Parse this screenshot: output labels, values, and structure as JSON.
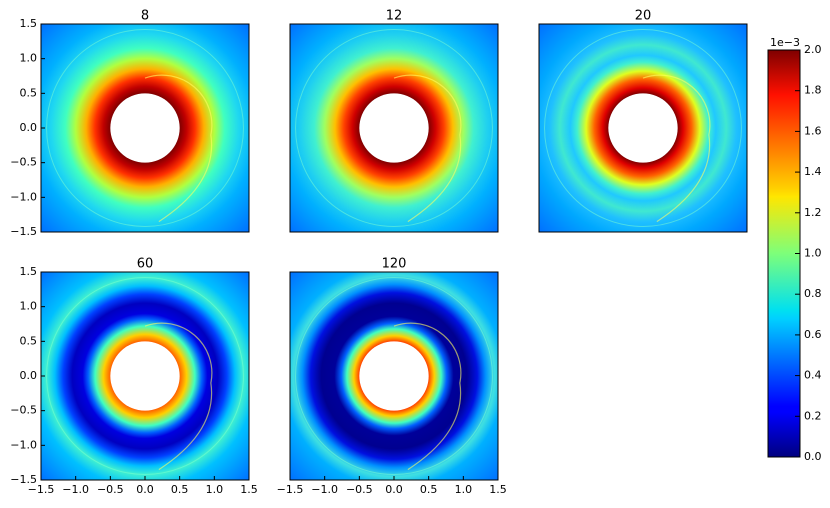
{
  "chart_data": [
    {
      "type": "heatmap",
      "title": "8",
      "xlim": [
        -1.5,
        1.5
      ],
      "ylim": [
        -1.5,
        1.5
      ],
      "yticks": [
        {
          "value": -1.5,
          "label": "−1.5"
        },
        {
          "value": -1.0,
          "label": "−1.0"
        },
        {
          "value": -0.5,
          "label": "−0.5"
        },
        {
          "value": 0,
          "label": "0.0"
        },
        0.5,
        {
          "value": 1.0,
          "label": "1.0"
        },
        1.5
      ]
    },
    {
      "type": "heatmap",
      "title": "12",
      "xlim": [
        -1.5,
        1.5
      ],
      "ylim": [
        -1.5,
        1.5
      ]
    },
    {
      "type": "heatmap",
      "title": "20",
      "xlim": [
        -1.5,
        1.5
      ],
      "ylim": [
        -1.5,
        1.5
      ]
    },
    {
      "type": "heatmap",
      "title": "60",
      "xlim": [
        -1.5,
        1.5
      ],
      "ylim": [
        -1.5,
        1.5
      ],
      "xticks": [
        {
          "value": -1.5,
          "label": "−1.5"
        },
        {
          "value": -1.0,
          "label": "−1.0"
        },
        {
          "value": -0.5,
          "label": "−0.5"
        },
        {
          "value": 0,
          "label": "0.0"
        },
        0.5,
        {
          "value": 1.0,
          "label": "1.0"
        },
        1.5
      ],
      "yticks": [
        {
          "value": -1.5,
          "label": "−1.5"
        },
        {
          "value": -1.0,
          "label": "−1.0"
        },
        {
          "value": -0.5,
          "label": "−0.5"
        },
        {
          "value": 0,
          "label": "0.0"
        },
        0.5,
        {
          "value": 1.0,
          "label": "1.0"
        },
        1.5
      ]
    },
    {
      "type": "heatmap",
      "title": "120",
      "xlim": [
        -1.5,
        1.5
      ],
      "ylim": [
        -1.5,
        1.5
      ],
      "xticks": [
        {
          "value": -1.5,
          "label": "−1.5"
        },
        {
          "value": -1.0,
          "label": "−1.0"
        },
        {
          "value": -0.5,
          "label": "−0.5"
        },
        {
          "value": 0,
          "label": "0.0"
        },
        0.5,
        {
          "value": 1.0,
          "label": "1.0"
        },
        1.5
      ]
    },
    {
      "type": "colorbar",
      "colormap": "jet",
      "offset_label": "1e−3",
      "ylim": [
        0,
        2.0
      ],
      "yticks": [
        {
          "value": 0,
          "label": "0.0"
        },
        0.2,
        0.4,
        0.6,
        0.8,
        {
          "value": 1.0,
          "label": "1.0"
        },
        1.2,
        1.4,
        1.6,
        1.8,
        {
          "value": 2.0,
          "label": "2.0"
        }
      ]
    }
  ]
}
